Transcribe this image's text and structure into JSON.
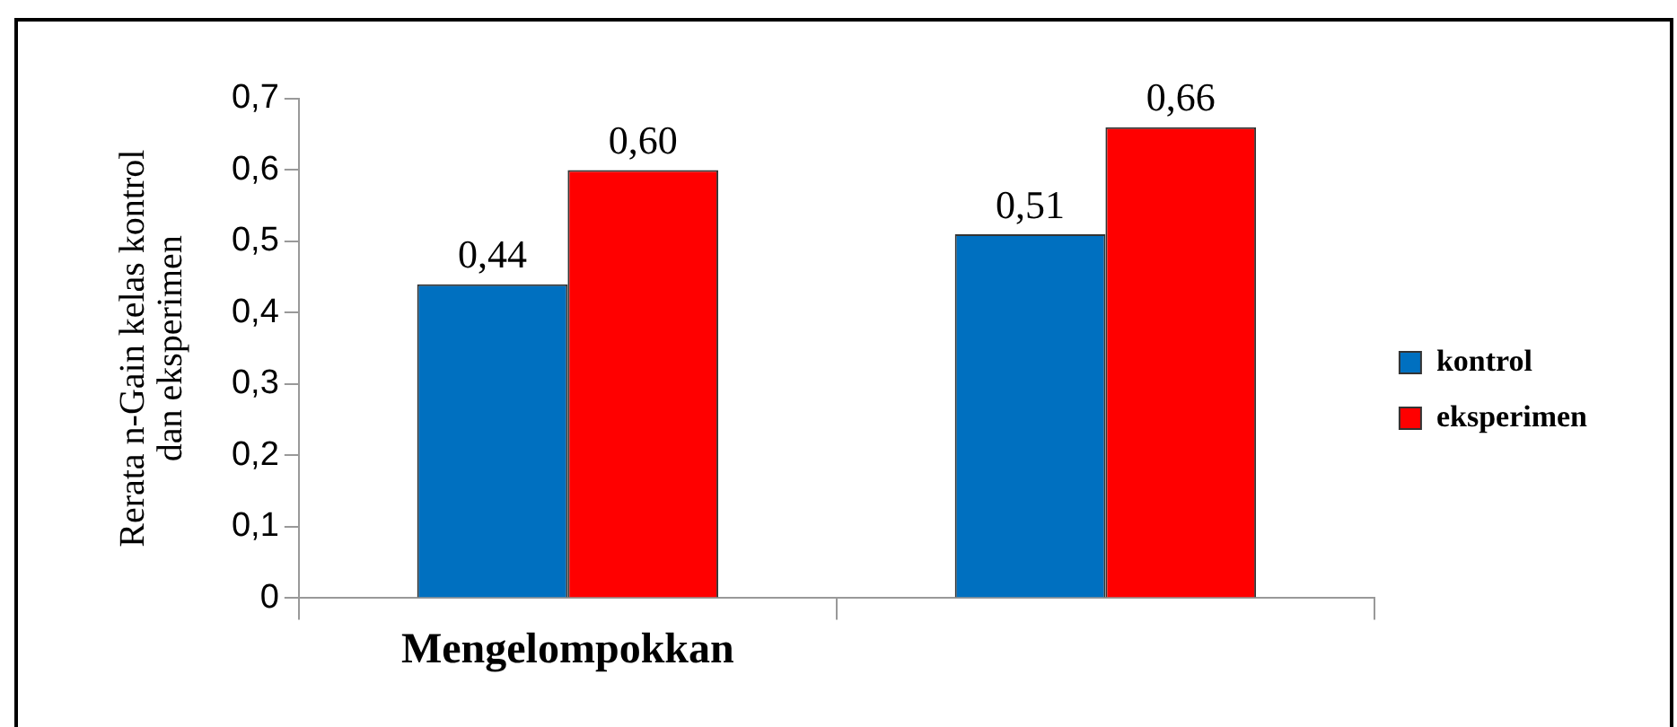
{
  "chart_data": {
    "type": "bar",
    "categories": [
      "Mengelompokkan",
      null
    ],
    "series": [
      {
        "name": "kontrol",
        "color": "#0070c0",
        "values": [
          0.44,
          0.51
        ],
        "value_labels": [
          "0,44",
          "0,51"
        ]
      },
      {
        "name": "eksperimen",
        "color": "#ff0000",
        "values": [
          0.6,
          0.66
        ],
        "value_labels": [
          "0,60",
          "0,66"
        ]
      }
    ],
    "ylabel": "Rerata n-Gain kelas kontrol\ndan eksperimen",
    "ylim": [
      0,
      0.7
    ],
    "yticks": [
      0,
      {
        "value": 0.1,
        "label": "0,1"
      },
      {
        "value": 0.2,
        "label": "0,2"
      },
      {
        "value": 0.3,
        "label": "0,3"
      },
      {
        "value": 0.4,
        "label": "0,4"
      },
      {
        "value": 0.5,
        "label": "0,5"
      },
      {
        "value": 0.6,
        "label": "0,6"
      },
      {
        "value": 0.7,
        "label": "0,7"
      }
    ],
    "grid": false,
    "legend": "right"
  }
}
